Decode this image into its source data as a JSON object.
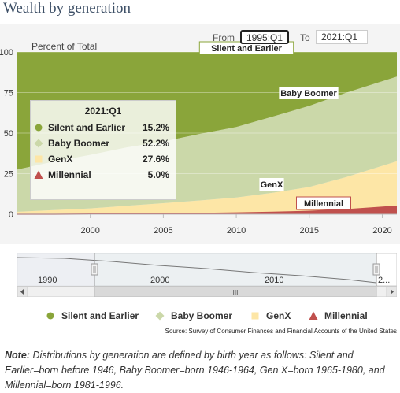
{
  "page": {
    "title": "Wealth by generation",
    "from_label": "From",
    "to_label": "To",
    "from_value": "1995:Q1",
    "to_value": "2021:Q1",
    "source": "Source: Survey of Consumer Finances and Financial Accounts of the United States",
    "note_label": "Note:",
    "note_text": "Distributions by generation are defined by birth year as follows: Silent and Earlier=born before 1946, Baby Boomer=born 1946-1964, Gen X=born 1965-1980, and Millennial=born 1981-1996."
  },
  "colors": {
    "silent": "#8aa53a",
    "boomer": "#cbd8a9",
    "genx": "#fde6a6",
    "millennial": "#c0504d"
  },
  "tooltip": {
    "title": "2021:Q1",
    "rows": [
      {
        "label": "Silent and Earlier",
        "value": "15.2%"
      },
      {
        "label": "Baby Boomer",
        "value": "52.2%"
      },
      {
        "label": "GenX",
        "value": "27.6%"
      },
      {
        "label": "Millennial",
        "value": "5.0%"
      }
    ]
  },
  "navigator": {
    "labels": [
      "1990",
      "2000",
      "2010",
      "2..."
    ],
    "scroll_grip": "III"
  },
  "chart_data": {
    "type": "area",
    "stacking": "percent",
    "ylabel": "Percent of Total",
    "ylim": [
      0,
      100
    ],
    "y_ticks": [
      "0",
      "25",
      "50",
      "75",
      "100"
    ],
    "x_ticks": [
      "2000",
      "2005",
      "2010",
      "2015",
      "2020"
    ],
    "x_range": [
      1995.0,
      2021.0
    ],
    "x": [
      1995.0,
      1997.5,
      2000.0,
      2002.5,
      2005.0,
      2007.5,
      2010.0,
      2012.5,
      2015.0,
      2017.5,
      2021.0
    ],
    "series": [
      {
        "name": "Millennial",
        "values": [
          0.0,
          0.0,
          0.1,
          0.2,
          0.3,
          0.5,
          0.8,
          1.2,
          1.8,
          2.8,
          5.0
        ]
      },
      {
        "name": "GenX",
        "values": [
          1.5,
          2.5,
          3.5,
          5.0,
          6.5,
          8.0,
          9.5,
          12.0,
          15.0,
          20.0,
          27.6
        ]
      },
      {
        "name": "Baby Boomer",
        "values": [
          26.0,
          30.0,
          33.0,
          36.0,
          38.0,
          41.0,
          43.5,
          47.0,
          50.0,
          52.0,
          52.2
        ]
      },
      {
        "name": "Silent and Earlier",
        "values": [
          72.5,
          67.5,
          63.4,
          58.8,
          55.2,
          50.5,
          46.2,
          39.8,
          33.2,
          25.2,
          15.2
        ]
      }
    ],
    "annotations": [
      "Silent and Earlier",
      "Baby Boomer",
      "GenX",
      "Millennial"
    ],
    "legend": "bottom",
    "grid": true
  }
}
